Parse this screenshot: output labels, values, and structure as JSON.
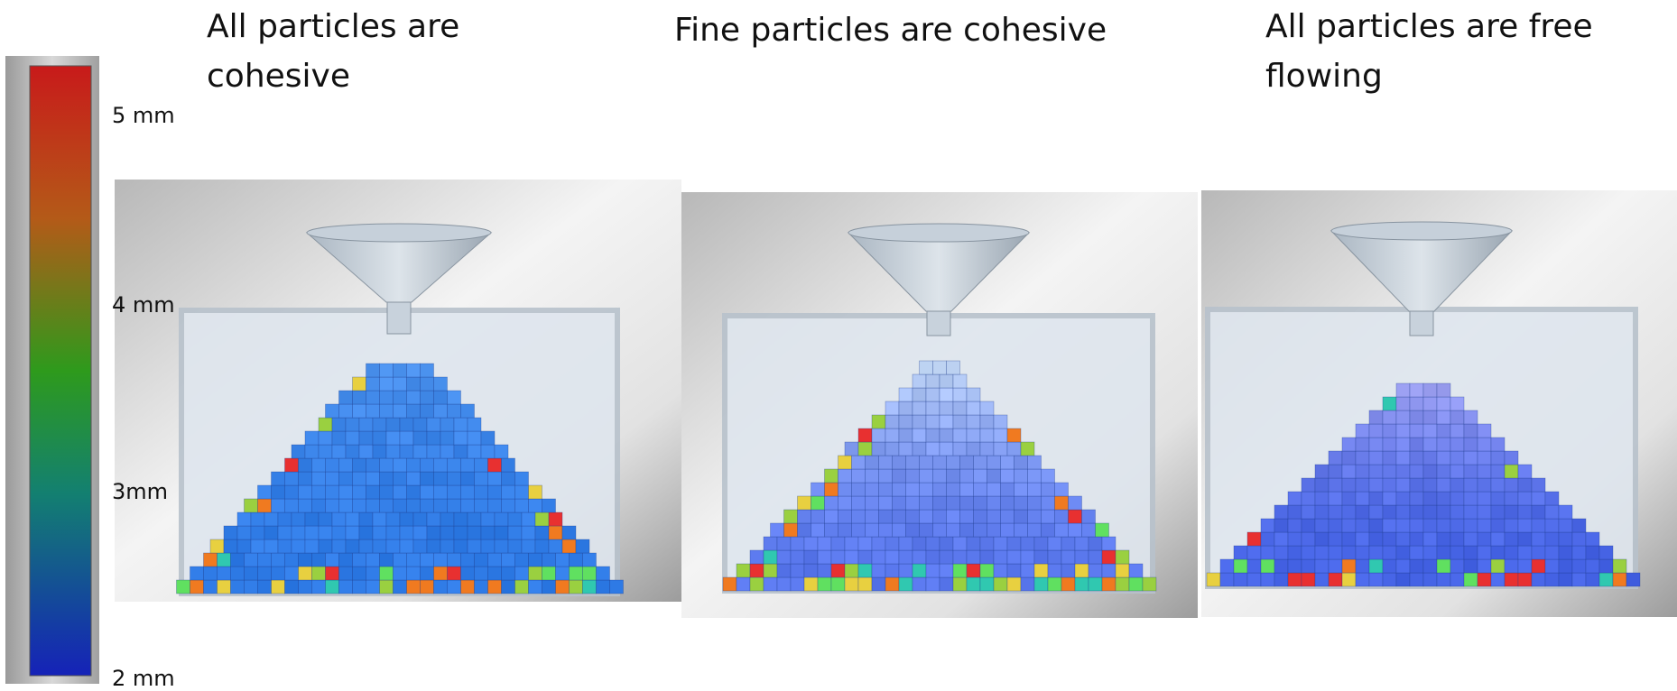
{
  "colorbar": {
    "labels": [
      "5 mm",
      "4 mm",
      "3mm",
      "2 mm"
    ]
  },
  "panels": [
    {
      "title": "All particles are cohesive"
    },
    {
      "title": "Fine particles are cohesive"
    },
    {
      "title": "All particles are free flowing"
    }
  ]
}
